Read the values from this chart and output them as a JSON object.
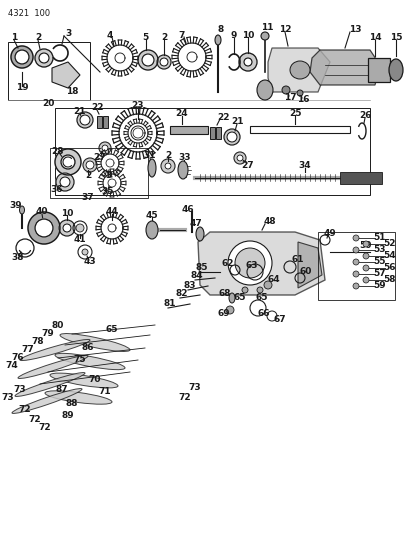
{
  "title": "4321  100",
  "bg": "#ffffff",
  "figsize": [
    4.08,
    5.33
  ],
  "dpi": 100,
  "lc": "#1a1a1a",
  "tc": "#1a1a1a",
  "fs": 6.5,
  "gray1": "#888888",
  "gray2": "#aaaaaa",
  "gray3": "#cccccc",
  "gray4": "#555555"
}
